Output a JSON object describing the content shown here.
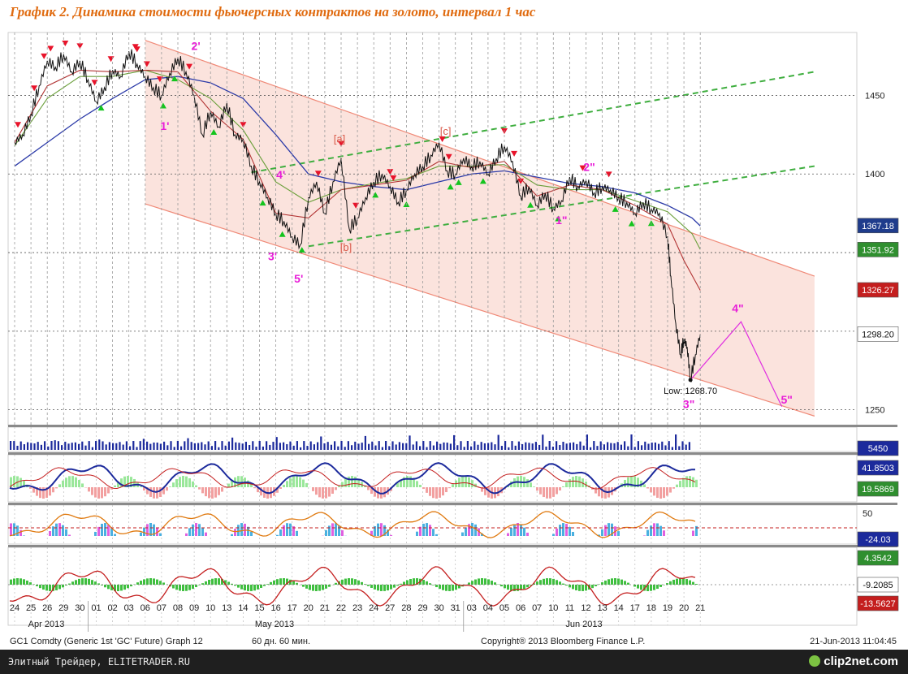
{
  "title": "График 2.   Динамика стоимости фьючерсных контрактов на золото, интервал 1 час",
  "footer": {
    "left_text": "Элитный Трейдер, ELITETRADER.RU",
    "logo_text": "clip2net.com"
  },
  "chart_data": {
    "type": "line",
    "x_axis": {
      "day_ticks": [
        "24",
        "25",
        "26",
        "29",
        "30",
        "01",
        "02",
        "03",
        "06",
        "07",
        "08",
        "09",
        "10",
        "13",
        "14",
        "15",
        "16",
        "17",
        "20",
        "21",
        "22",
        "23",
        "24",
        "27",
        "28",
        "29",
        "30",
        "31",
        "03",
        "04",
        "05",
        "06",
        "07",
        "10",
        "11",
        "12",
        "13",
        "14",
        "17",
        "18",
        "19",
        "20",
        "21"
      ],
      "months": [
        "Apr 2013",
        "May 2013",
        "Jun 2013"
      ]
    },
    "y_axis": {
      "ylim": [
        1240,
        1490
      ],
      "ticks": [
        1250,
        1300,
        1350,
        1400,
        1450
      ]
    },
    "price_labels": [
      {
        "value": "1367.18",
        "color": "#1f3c8c"
      },
      {
        "value": "1351.92",
        "color": "#2f8f2f"
      },
      {
        "value": "1326.27",
        "color": "#c41e1e"
      },
      {
        "value": "1298.20",
        "color": "#ffffff"
      }
    ],
    "price_series": [
      {
        "x": 0.0,
        "y": 1420
      },
      {
        "x": 0.5,
        "y": 1425
      },
      {
        "x": 1.0,
        "y": 1438
      },
      {
        "x": 1.5,
        "y": 1456
      },
      {
        "x": 2.0,
        "y": 1472
      },
      {
        "x": 2.5,
        "y": 1468
      },
      {
        "x": 3.0,
        "y": 1476
      },
      {
        "x": 3.5,
        "y": 1465
      },
      {
        "x": 4.0,
        "y": 1472
      },
      {
        "x": 4.5,
        "y": 1460
      },
      {
        "x": 5.0,
        "y": 1446
      },
      {
        "x": 5.5,
        "y": 1455
      },
      {
        "x": 6.0,
        "y": 1466
      },
      {
        "x": 6.5,
        "y": 1462
      },
      {
        "x": 7.0,
        "y": 1478
      },
      {
        "x": 7.5,
        "y": 1470
      },
      {
        "x": 8.0,
        "y": 1462
      },
      {
        "x": 8.5,
        "y": 1455
      },
      {
        "x": 9.0,
        "y": 1450
      },
      {
        "x": 9.5,
        "y": 1464
      },
      {
        "x": 10.0,
        "y": 1474
      },
      {
        "x": 10.5,
        "y": 1465
      },
      {
        "x": 11.0,
        "y": 1450
      },
      {
        "x": 11.5,
        "y": 1425
      },
      {
        "x": 12.0,
        "y": 1440
      },
      {
        "x": 12.5,
        "y": 1430
      },
      {
        "x": 13.0,
        "y": 1445
      },
      {
        "x": 13.5,
        "y": 1425
      },
      {
        "x": 14.0,
        "y": 1422
      },
      {
        "x": 14.5,
        "y": 1405
      },
      {
        "x": 15.0,
        "y": 1395
      },
      {
        "x": 15.5,
        "y": 1385
      },
      {
        "x": 16.0,
        "y": 1375
      },
      {
        "x": 16.5,
        "y": 1370
      },
      {
        "x": 17.0,
        "y": 1360
      },
      {
        "x": 17.5,
        "y": 1355
      },
      {
        "x": 18.0,
        "y": 1385
      },
      {
        "x": 18.5,
        "y": 1395
      },
      {
        "x": 19.0,
        "y": 1375
      },
      {
        "x": 19.5,
        "y": 1395
      },
      {
        "x": 20.0,
        "y": 1410
      },
      {
        "x": 20.5,
        "y": 1365
      },
      {
        "x": 21.0,
        "y": 1372
      },
      {
        "x": 21.5,
        "y": 1385
      },
      {
        "x": 22.0,
        "y": 1395
      },
      {
        "x": 22.5,
        "y": 1400
      },
      {
        "x": 23.0,
        "y": 1392
      },
      {
        "x": 23.5,
        "y": 1382
      },
      {
        "x": 24.0,
        "y": 1390
      },
      {
        "x": 24.5,
        "y": 1400
      },
      {
        "x": 25.0,
        "y": 1405
      },
      {
        "x": 25.5,
        "y": 1412
      },
      {
        "x": 26.0,
        "y": 1420
      },
      {
        "x": 26.5,
        "y": 1402
      },
      {
        "x": 27.0,
        "y": 1400
      },
      {
        "x": 27.5,
        "y": 1410
      },
      {
        "x": 28.0,
        "y": 1405
      },
      {
        "x": 28.5,
        "y": 1408
      },
      {
        "x": 29.0,
        "y": 1400
      },
      {
        "x": 29.5,
        "y": 1410
      },
      {
        "x": 30.0,
        "y": 1418
      },
      {
        "x": 30.5,
        "y": 1408
      },
      {
        "x": 31.0,
        "y": 1386
      },
      {
        "x": 31.5,
        "y": 1392
      },
      {
        "x": 32.0,
        "y": 1380
      },
      {
        "x": 32.5,
        "y": 1388
      },
      {
        "x": 33.0,
        "y": 1378
      },
      {
        "x": 33.5,
        "y": 1383
      },
      {
        "x": 34.0,
        "y": 1398
      },
      {
        "x": 34.5,
        "y": 1392
      },
      {
        "x": 35.0,
        "y": 1396
      },
      {
        "x": 35.5,
        "y": 1388
      },
      {
        "x": 36.0,
        "y": 1392
      },
      {
        "x": 36.5,
        "y": 1390
      },
      {
        "x": 37.0,
        "y": 1385
      },
      {
        "x": 37.5,
        "y": 1382
      },
      {
        "x": 38.0,
        "y": 1375
      },
      {
        "x": 38.5,
        "y": 1382
      },
      {
        "x": 39.0,
        "y": 1378
      },
      {
        "x": 39.5,
        "y": 1375
      },
      {
        "x": 40.0,
        "y": 1360
      },
      {
        "x": 40.2,
        "y": 1335
      },
      {
        "x": 40.5,
        "y": 1305
      },
      {
        "x": 40.8,
        "y": 1285
      },
      {
        "x": 41.0,
        "y": 1295
      },
      {
        "x": 41.2,
        "y": 1290
      },
      {
        "x": 41.4,
        "y": 1269
      },
      {
        "x": 41.7,
        "y": 1285
      },
      {
        "x": 42.0,
        "y": 1298
      }
    ],
    "ma_blue": [
      {
        "x": 0,
        "y": 1405
      },
      {
        "x": 2,
        "y": 1420
      },
      {
        "x": 4,
        "y": 1435
      },
      {
        "x": 6,
        "y": 1448
      },
      {
        "x": 8,
        "y": 1460
      },
      {
        "x": 10,
        "y": 1462
      },
      {
        "x": 12,
        "y": 1458
      },
      {
        "x": 14,
        "y": 1448
      },
      {
        "x": 16,
        "y": 1425
      },
      {
        "x": 18,
        "y": 1400
      },
      {
        "x": 20,
        "y": 1395
      },
      {
        "x": 22,
        "y": 1392
      },
      {
        "x": 24,
        "y": 1390
      },
      {
        "x": 26,
        "y": 1395
      },
      {
        "x": 28,
        "y": 1400
      },
      {
        "x": 30,
        "y": 1402
      },
      {
        "x": 32,
        "y": 1398
      },
      {
        "x": 34,
        "y": 1394
      },
      {
        "x": 36,
        "y": 1392
      },
      {
        "x": 38,
        "y": 1388
      },
      {
        "x": 40,
        "y": 1380
      },
      {
        "x": 41.5,
        "y": 1372
      },
      {
        "x": 42,
        "y": 1367
      }
    ],
    "ma_green": [
      {
        "x": 0,
        "y": 1418
      },
      {
        "x": 2,
        "y": 1448
      },
      {
        "x": 4,
        "y": 1462
      },
      {
        "x": 6,
        "y": 1462
      },
      {
        "x": 8,
        "y": 1466
      },
      {
        "x": 10,
        "y": 1460
      },
      {
        "x": 12,
        "y": 1448
      },
      {
        "x": 14,
        "y": 1428
      },
      {
        "x": 16,
        "y": 1395
      },
      {
        "x": 18,
        "y": 1382
      },
      {
        "x": 20,
        "y": 1390
      },
      {
        "x": 22,
        "y": 1394
      },
      {
        "x": 24,
        "y": 1397
      },
      {
        "x": 26,
        "y": 1405
      },
      {
        "x": 28,
        "y": 1405
      },
      {
        "x": 30,
        "y": 1406
      },
      {
        "x": 32,
        "y": 1393
      },
      {
        "x": 34,
        "y": 1390
      },
      {
        "x": 36,
        "y": 1390
      },
      {
        "x": 38,
        "y": 1383
      },
      {
        "x": 40,
        "y": 1376
      },
      {
        "x": 41.5,
        "y": 1362
      },
      {
        "x": 42,
        "y": 1352
      }
    ],
    "ma_red": [
      {
        "x": 0,
        "y": 1420
      },
      {
        "x": 2,
        "y": 1456
      },
      {
        "x": 4,
        "y": 1466
      },
      {
        "x": 6,
        "y": 1465
      },
      {
        "x": 8,
        "y": 1466
      },
      {
        "x": 10,
        "y": 1465
      },
      {
        "x": 12,
        "y": 1440
      },
      {
        "x": 14,
        "y": 1422
      },
      {
        "x": 16,
        "y": 1375
      },
      {
        "x": 18,
        "y": 1372
      },
      {
        "x": 20,
        "y": 1390
      },
      {
        "x": 22,
        "y": 1393
      },
      {
        "x": 24,
        "y": 1396
      },
      {
        "x": 26,
        "y": 1408
      },
      {
        "x": 28,
        "y": 1404
      },
      {
        "x": 30,
        "y": 1408
      },
      {
        "x": 32,
        "y": 1386
      },
      {
        "x": 34,
        "y": 1393
      },
      {
        "x": 36,
        "y": 1390
      },
      {
        "x": 38,
        "y": 1380
      },
      {
        "x": 40,
        "y": 1368
      },
      {
        "x": 41,
        "y": 1345
      },
      {
        "x": 42,
        "y": 1326
      }
    ],
    "channel": {
      "upper": [
        {
          "x": 8,
          "y": 1485
        },
        {
          "x": 49,
          "y": 1335
        }
      ],
      "lower": [
        {
          "x": 8,
          "y": 1381
        },
        {
          "x": 49,
          "y": 1246
        }
      ],
      "fill_color": "#fbe3dd",
      "line_color": "#f08a78"
    },
    "green_dashed_lines": [
      [
        {
          "x": 14.5,
          "y": 1401
        },
        {
          "x": 49,
          "y": 1465
        }
      ],
      [
        {
          "x": 18,
          "y": 1354
        },
        {
          "x": 49,
          "y": 1405
        }
      ]
    ],
    "projection": [
      {
        "x": 41.4,
        "y": 1269
      },
      {
        "x": 44.5,
        "y": 1306
      },
      {
        "x": 47,
        "y": 1252
      }
    ],
    "low_label": "Low: 1268.70",
    "wave_labels": [
      {
        "text": "1'",
        "x": 9.2,
        "y": 1428,
        "color": "#e81ed8"
      },
      {
        "text": "2'",
        "x": 11.1,
        "y": 1479,
        "color": "#e81ed8"
      },
      {
        "text": "3'",
        "x": 15.8,
        "y": 1345,
        "color": "#e81ed8"
      },
      {
        "text": "4'",
        "x": 16.3,
        "y": 1397,
        "color": "#e81ed8"
      },
      {
        "text": "5'",
        "x": 17.4,
        "y": 1331,
        "color": "#e81ed8"
      },
      {
        "text": "[a]",
        "x": 19.9,
        "y": 1420,
        "color": "#d95a4a"
      },
      {
        "text": "[b]",
        "x": 20.3,
        "y": 1351,
        "color": "#d95a4a"
      },
      {
        "text": "[c]",
        "x": 26.4,
        "y": 1425,
        "color": "#d95a4a"
      },
      {
        "text": "1\"",
        "x": 33.5,
        "y": 1368,
        "color": "#e81ed8"
      },
      {
        "text": "2\"",
        "x": 35.2,
        "y": 1402,
        "color": "#e81ed8"
      },
      {
        "text": "3\"",
        "x": 41.3,
        "y": 1251,
        "color": "#e81ed8"
      },
      {
        "text": "4\"",
        "x": 44.3,
        "y": 1312,
        "color": "#e81ed8"
      },
      {
        "text": "5\"",
        "x": 47.3,
        "y": 1254,
        "color": "#e81ed8"
      }
    ],
    "sell_markers_x": [
      0.2,
      1.2,
      1.8,
      2.2,
      3.1,
      4.0,
      4.9,
      5.9,
      7.4,
      7.5,
      8.1,
      8.9,
      10.7,
      14.0,
      18.6,
      20.0,
      20.9,
      23.0,
      23.2,
      26.2,
      26.6,
      30.0,
      30.6,
      31.0,
      34.8,
      36.4
    ],
    "buy_markers_x": [
      5.3,
      9.1,
      9.8,
      12.2,
      15.2,
      16.4,
      17.6,
      22.1,
      24.0,
      26.7,
      27.2,
      28.7,
      31.6,
      33.3,
      36.8,
      37.8,
      39.0
    ],
    "panels": {
      "volume": {
        "label": "5450",
        "label_color": "#1c2a9c"
      },
      "rsi": {
        "labels": [
          {
            "value": "41.8503",
            "color": "#1c2a9c"
          },
          {
            "value": "19.5869",
            "color": "#2f8f2f"
          }
        ]
      },
      "stoch": {
        "scale": "50",
        "label": "-24.03",
        "label_color": "#1c2a9c"
      },
      "macd": {
        "labels": [
          {
            "value": "4.3542",
            "color": "#2f8f2f"
          },
          {
            "value": "-9.2085",
            "color": "#ffffff"
          },
          {
            "value": "-13.5627",
            "color": "#c41e1e"
          }
        ]
      }
    },
    "bottom_texts": {
      "left": "GC1 Comdty (Generic 1st 'GC' Future) Graph 12",
      "interval": "60 дн. 60 мин.",
      "copyright": "Copyright® 2013 Bloomberg Finance L.P.",
      "date": "21-Jun-2013 11:04:45"
    }
  }
}
